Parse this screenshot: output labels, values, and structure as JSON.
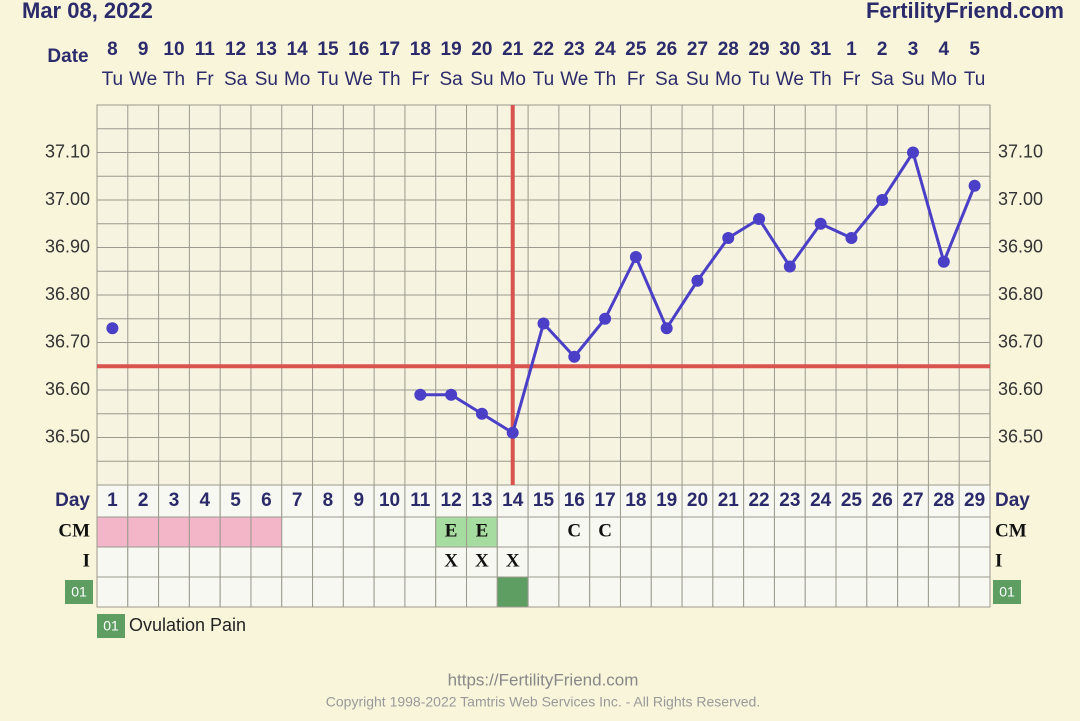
{
  "header": {
    "date": "Mar 08, 2022",
    "site": "FertilityFriend.com"
  },
  "footer": {
    "url": "https://FertilityFriend.com",
    "copyright": "Copyright 1998-2022 Tamtris Web Services Inc. - All Rights Reserved."
  },
  "chart_data": {
    "type": "line",
    "date_label": "Date",
    "dates": [
      8,
      9,
      10,
      11,
      12,
      13,
      14,
      15,
      16,
      17,
      18,
      19,
      20,
      21,
      22,
      23,
      24,
      25,
      26,
      27,
      28,
      29,
      30,
      31,
      1,
      2,
      3,
      4,
      5
    ],
    "weekdays": [
      "Tu",
      "We",
      "Th",
      "Fr",
      "Sa",
      "Su",
      "Mo",
      "Tu",
      "We",
      "Th",
      "Fr",
      "Sa",
      "Su",
      "Mo",
      "Tu",
      "We",
      "Th",
      "Fr",
      "Sa",
      "Su",
      "Mo",
      "Tu",
      "We",
      "Th",
      "Fr",
      "Sa",
      "Su",
      "Mo",
      "Tu"
    ],
    "x_label": "Day",
    "x": [
      1,
      2,
      3,
      4,
      5,
      6,
      7,
      8,
      9,
      10,
      11,
      12,
      13,
      14,
      15,
      16,
      17,
      18,
      19,
      20,
      21,
      22,
      23,
      24,
      25,
      26,
      27,
      28,
      29
    ],
    "xlim": [
      0.5,
      29.5
    ],
    "series": [
      {
        "name": "Temperature",
        "color": "#4a3fc6",
        "values": [
          36.73,
          null,
          null,
          null,
          null,
          null,
          null,
          null,
          null,
          null,
          36.59,
          36.59,
          36.55,
          36.51,
          36.74,
          36.67,
          36.75,
          36.88,
          36.73,
          36.83,
          36.92,
          36.96,
          36.86,
          36.95,
          36.92,
          37.0,
          37.1,
          36.87,
          37.03
        ]
      }
    ],
    "ylim": [
      36.4,
      37.2
    ],
    "yticks": [
      {
        "value": 36.5,
        "label": "36.50"
      },
      {
        "value": 36.6,
        "label": "36.60"
      },
      {
        "value": 36.7,
        "label": "36.70"
      },
      {
        "value": 36.8,
        "label": "36.80"
      },
      {
        "value": 36.9,
        "label": "36.90"
      },
      {
        "value": 37.0,
        "label": "37.00"
      },
      {
        "value": 37.1,
        "label": "37.10"
      }
    ],
    "grid": true,
    "coverline": 36.65,
    "ovulation_day": 14,
    "marker_color": "#d9534f",
    "period_days": [
      1,
      2,
      3,
      4,
      5,
      6
    ],
    "period_color": "#f2b6c8",
    "cm_label": "CM",
    "cm": [
      null,
      null,
      null,
      null,
      null,
      null,
      null,
      null,
      null,
      null,
      null,
      "E",
      "E",
      null,
      null,
      "C",
      "C",
      null,
      null,
      null,
      null,
      null,
      null,
      null,
      null,
      null,
      null,
      null,
      null
    ],
    "intercourse_label": "I",
    "intercourse": [
      null,
      null,
      null,
      null,
      null,
      null,
      null,
      null,
      null,
      null,
      null,
      "X",
      "X",
      "X",
      null,
      null,
      null,
      null,
      null,
      null,
      null,
      null,
      null,
      null,
      null,
      null,
      null,
      null,
      null
    ],
    "symptom": {
      "code": "01",
      "label": "Ovulation Pain",
      "days": [
        14
      ],
      "color": "#5f9e63"
    }
  }
}
